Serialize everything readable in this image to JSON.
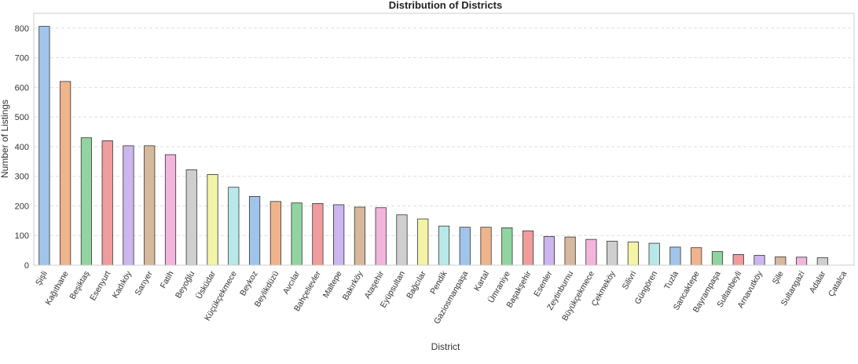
{
  "chart_data": {
    "type": "bar",
    "title": "Distribution of Districts",
    "xlabel": "District",
    "ylabel": "Number of Listings",
    "ylim": [
      0,
      850
    ],
    "yticks": [
      0,
      100,
      200,
      300,
      400,
      500,
      600,
      700,
      800
    ],
    "grid": "y-dashed",
    "categories": [
      "Şişli",
      "Kağıthane",
      "Beşiktaş",
      "Esenyurt",
      "Kadıköy",
      "Sarıyer",
      "Fatih",
      "Beyoğlu",
      "Üsküdar",
      "Küçükçekmece",
      "Beykoz",
      "Beylikdüzü",
      "Avcılar",
      "Bahçelievler",
      "Maltepe",
      "Bakırköy",
      "Ataşehir",
      "Eyüpsultan",
      "Bağcılar",
      "Pendik",
      "Gaziosmanpaşa",
      "Kartal",
      "Ümraniye",
      "Başakşehir",
      "Esenler",
      "Zeytinburnu",
      "Büyükçekmece",
      "Çekmeköy",
      "Silivri",
      "Güngören",
      "Tuzla",
      "Sancaktepe",
      "Bayrampaşa",
      "Sultanbeyli",
      "Arnavutköy",
      "Şile",
      "Sultangazi",
      "Adalar",
      "Çatalca"
    ],
    "values": [
      806,
      620,
      430,
      420,
      403,
      403,
      373,
      322,
      306,
      263,
      232,
      215,
      210,
      208,
      204,
      196,
      194,
      170,
      156,
      132,
      128,
      128,
      126,
      116,
      97,
      95,
      87,
      81,
      78,
      74,
      61,
      59,
      46,
      36,
      33,
      28,
      27,
      25,
      0
    ],
    "colors": [
      "#a1c4eb",
      "#f0b48d",
      "#91d4a0",
      "#f09c9c",
      "#cbb6ee",
      "#d6b99c",
      "#f2b5dc",
      "#cfcfcf",
      "#f4f4a8",
      "#b8e8e8"
    ]
  }
}
